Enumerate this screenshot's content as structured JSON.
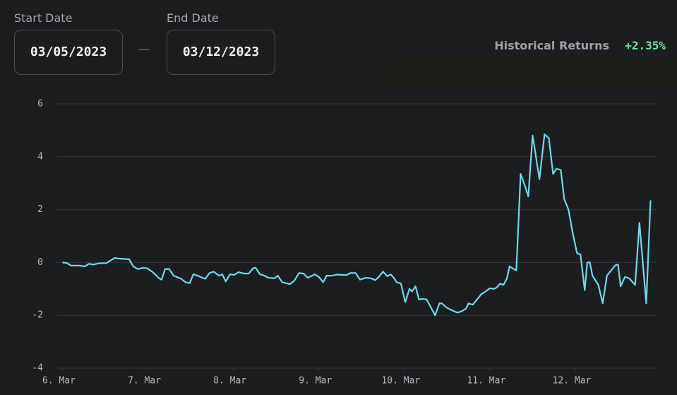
{
  "start_date": {
    "label": "Start Date",
    "value": "03/05/2023"
  },
  "separator": "—",
  "end_date": {
    "label": "End Date",
    "value": "03/12/2023"
  },
  "historical_returns": {
    "label": "Historical Returns",
    "value": "+2.35%"
  },
  "chart_data": {
    "type": "line",
    "x": [
      0,
      0.05,
      0.1,
      0.2,
      0.26,
      0.31,
      0.36,
      0.43,
      0.51,
      0.61,
      0.68,
      0.78,
      0.83,
      0.88,
      0.95,
      0.99,
      1.05,
      1.13,
      1.16,
      1.2,
      1.25,
      1.3,
      1.39,
      1.44,
      1.49,
      1.53,
      1.58,
      1.67,
      1.72,
      1.77,
      1.83,
      1.87,
      1.91,
      1.96,
      2.01,
      2.06,
      2.13,
      2.18,
      2.23,
      2.26,
      2.31,
      2.36,
      2.41,
      2.48,
      2.52,
      2.57,
      2.66,
      2.71,
      2.77,
      2.82,
      2.87,
      2.92,
      2.95,
      3.0,
      3.05,
      3.09,
      3.15,
      3.22,
      3.32,
      3.37,
      3.43,
      3.48,
      3.55,
      3.61,
      3.66,
      3.7,
      3.75,
      3.8,
      3.84,
      3.88,
      3.91,
      3.96,
      4.01,
      4.06,
      4.09,
      4.13,
      4.17,
      4.22,
      4.26,
      4.31,
      4.36,
      4.41,
      4.44,
      4.49,
      4.55,
      4.62,
      4.67,
      4.72,
      4.75,
      4.8,
      4.85,
      4.9,
      4.95,
      5.0,
      5.05,
      5.08,
      5.12,
      5.16,
      5.2,
      5.23,
      5.28,
      5.31,
      5.36,
      5.41,
      5.45,
      5.5,
      5.53,
      5.58,
      5.64,
      5.69,
      5.74,
      5.78,
      5.83,
      5.87,
      5.92,
      5.97,
      6.02,
      6.06,
      6.11,
      6.14,
      6.17,
      6.2,
      6.27,
      6.32,
      6.37,
      6.42,
      6.47,
      6.5,
      6.53,
      6.58,
      6.63,
      6.7,
      6.75,
      6.8,
      6.83,
      6.88
    ],
    "series": [
      {
        "color": "#72d6ea",
        "values": [
          0,
          -0.02,
          -0.12,
          -0.12,
          -0.15,
          -0.05,
          -0.08,
          -0.03,
          -0.03,
          0.17,
          0.14,
          0.12,
          -0.15,
          -0.25,
          -0.2,
          -0.22,
          -0.35,
          -0.6,
          -0.65,
          -0.25,
          -0.25,
          -0.5,
          -0.62,
          -0.75,
          -0.78,
          -0.45,
          -0.5,
          -0.62,
          -0.4,
          -0.35,
          -0.5,
          -0.45,
          -0.72,
          -0.45,
          -0.47,
          -0.37,
          -0.42,
          -0.42,
          -0.22,
          -0.2,
          -0.45,
          -0.5,
          -0.58,
          -0.6,
          -0.5,
          -0.75,
          -0.82,
          -0.7,
          -0.4,
          -0.42,
          -0.58,
          -0.5,
          -0.45,
          -0.55,
          -0.75,
          -0.5,
          -0.5,
          -0.46,
          -0.48,
          -0.4,
          -0.4,
          -0.65,
          -0.58,
          -0.6,
          -0.67,
          -0.55,
          -0.35,
          -0.52,
          -0.45,
          -0.6,
          -0.75,
          -0.8,
          -1.5,
          -1.0,
          -1.1,
          -0.9,
          -1.4,
          -1.38,
          -1.4,
          -1.7,
          -2.0,
          -1.55,
          -1.55,
          -1.7,
          -1.8,
          -1.9,
          -1.85,
          -1.75,
          -1.55,
          -1.6,
          -1.4,
          -1.2,
          -1.1,
          -0.98,
          -1.0,
          -0.95,
          -0.8,
          -0.85,
          -0.6,
          -0.15,
          -0.25,
          -0.3,
          3.35,
          2.9,
          2.5,
          4.8,
          4.2,
          3.15,
          4.85,
          4.7,
          3.35,
          3.55,
          3.5,
          2.4,
          2.0,
          1.1,
          0.35,
          0.3,
          -1.05,
          0,
          0,
          -0.5,
          -0.85,
          -1.55,
          -0.5,
          -0.3,
          -0.1,
          -0.08,
          -0.9,
          -0.55,
          -0.6,
          -0.85,
          1.5,
          -0.4,
          -1.55,
          2.35
        ]
      }
    ],
    "xlim": [
      -0.07,
      6.95
    ],
    "xticks": [
      {
        "value": 0,
        "label": "6. Mar"
      },
      {
        "value": 1,
        "label": "7. Mar"
      },
      {
        "value": 2,
        "label": "8. Mar"
      },
      {
        "value": 3,
        "label": "9. Mar"
      },
      {
        "value": 4,
        "label": "10. Mar"
      },
      {
        "value": 5,
        "label": "11. Mar"
      },
      {
        "value": 6,
        "label": "12. Mar"
      }
    ],
    "ylim": [
      -4,
      6
    ],
    "yticks": [
      -4,
      -2,
      0,
      2,
      4,
      6
    ],
    "grid": true
  }
}
